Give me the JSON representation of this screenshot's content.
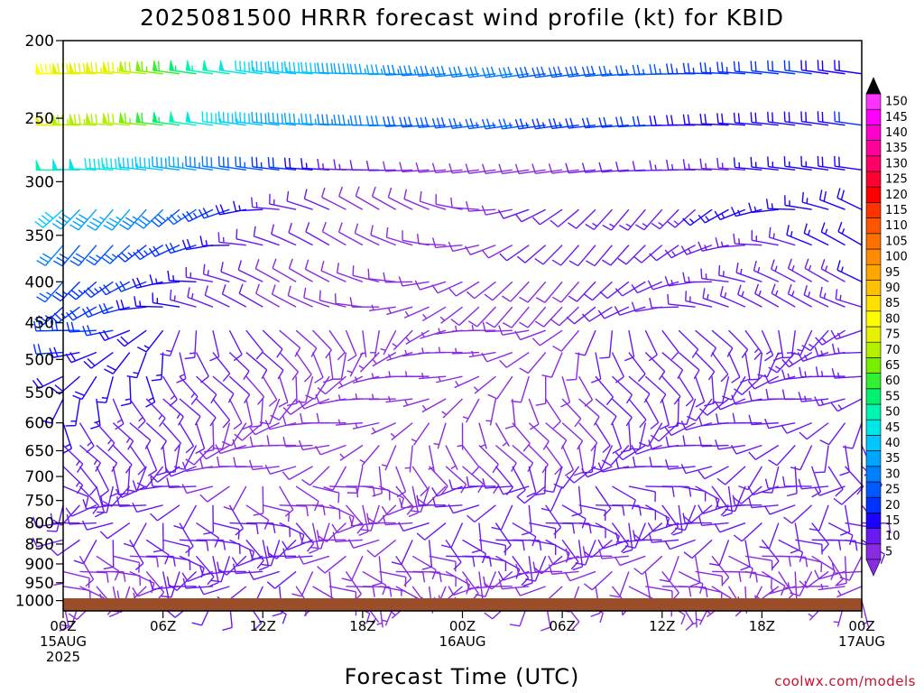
{
  "chart_data": {
    "type": "wind_barb_time_height",
    "title": "2025081500 HRRR forecast wind profile (kt) for KBID",
    "xlabel": "Forecast Time (UTC)",
    "credit": "coolwx.com/models",
    "x_ticks": [
      {
        "hour": 0,
        "lines": [
          "00Z",
          "15AUG",
          "2025"
        ]
      },
      {
        "hour": 6,
        "lines": [
          "06Z"
        ]
      },
      {
        "hour": 12,
        "lines": [
          "12Z"
        ]
      },
      {
        "hour": 18,
        "lines": [
          "18Z"
        ]
      },
      {
        "hour": 24,
        "lines": [
          "00Z",
          "16AUG"
        ]
      },
      {
        "hour": 30,
        "lines": [
          "06Z"
        ]
      },
      {
        "hour": 36,
        "lines": [
          "12Z"
        ]
      },
      {
        "hour": 42,
        "lines": [
          "18Z"
        ]
      },
      {
        "hour": 48,
        "lines": [
          "00Z",
          "17AUG"
        ]
      }
    ],
    "xlim_hours": [
      0,
      48
    ],
    "y_ticks": [
      200,
      250,
      300,
      350,
      400,
      450,
      500,
      550,
      600,
      650,
      700,
      750,
      800,
      850,
      900,
      950,
      1000
    ],
    "ylim_hpa": [
      200,
      1030
    ],
    "y_scale": "log",
    "ground_color": "#9a4e2a",
    "colorbar": {
      "levels": [
        5,
        10,
        15,
        20,
        25,
        30,
        35,
        40,
        45,
        50,
        55,
        60,
        65,
        70,
        75,
        80,
        85,
        90,
        95,
        100,
        105,
        110,
        115,
        120,
        125,
        130,
        135,
        140,
        145,
        150
      ],
      "colors": [
        "#8a2be2",
        "#6a1af0",
        "#1a00ff",
        "#0033ff",
        "#0059ff",
        "#007fff",
        "#00a5ff",
        "#00c8ff",
        "#00e5e5",
        "#00f5b0",
        "#00f070",
        "#33f033",
        "#77f000",
        "#b3f000",
        "#e6f000",
        "#ffff00",
        "#ffe000",
        "#ffc000",
        "#ffa500",
        "#ff8c00",
        "#ff7000",
        "#ff5500",
        "#ff3300",
        "#ff0000",
        "#ff0033",
        "#ff0066",
        "#ff0099",
        "#ff00cc",
        "#ff00ff",
        "#ff33ff"
      ],
      "extend": "both",
      "under_color": "#8a2be2",
      "over_color": "#000000"
    },
    "series": [
      {
        "level_hpa": 220,
        "speed_kt": [
          80,
          75,
          55,
          45,
          40,
          35,
          32,
          30,
          28,
          26,
          22,
          18
        ]
      },
      {
        "level_hpa": 255,
        "speed_kt": [
          75,
          70,
          50,
          40,
          35,
          30,
          28,
          25,
          22,
          20,
          18,
          20
        ]
      },
      {
        "level_hpa": 290,
        "speed_kt": [
          50,
          45,
          35,
          25,
          15,
          10,
          8,
          8,
          10,
          12,
          15,
          18
        ]
      },
      {
        "level_hpa": 325,
        "speed_kt": [
          40,
          35,
          25,
          15,
          10,
          8,
          8,
          10,
          12,
          14,
          16,
          18
        ]
      },
      {
        "level_hpa": 360,
        "speed_kt": [
          30,
          25,
          20,
          12,
          10,
          8,
          8,
          10,
          10,
          12,
          14,
          16
        ]
      },
      {
        "level_hpa": 400,
        "speed_kt": [
          25,
          22,
          15,
          10,
          8,
          8,
          8,
          8,
          10,
          12,
          14,
          15
        ]
      },
      {
        "level_hpa": 500,
        "speed_kt": [
          20,
          18,
          12,
          10,
          8,
          6,
          6,
          8,
          10,
          12,
          12,
          14
        ]
      },
      {
        "level_hpa": 600,
        "speed_kt": [
          15,
          12,
          10,
          8,
          8,
          6,
          6,
          8,
          10,
          10,
          12,
          12
        ]
      },
      {
        "level_hpa": 700,
        "speed_kt": [
          12,
          10,
          10,
          8,
          8,
          8,
          10,
          12,
          10,
          10,
          10,
          10
        ]
      },
      {
        "level_hpa": 850,
        "speed_kt": [
          10,
          10,
          12,
          12,
          10,
          10,
          12,
          12,
          10,
          10,
          10,
          10
        ]
      },
      {
        "level_hpa": 1000,
        "speed_kt": [
          8,
          8,
          10,
          10,
          8,
          6,
          6,
          8,
          8,
          8,
          6,
          6
        ]
      }
    ],
    "series_x_hours": [
      0,
      4,
      8,
      12,
      16,
      20,
      24,
      28,
      32,
      36,
      42,
      48
    ]
  }
}
